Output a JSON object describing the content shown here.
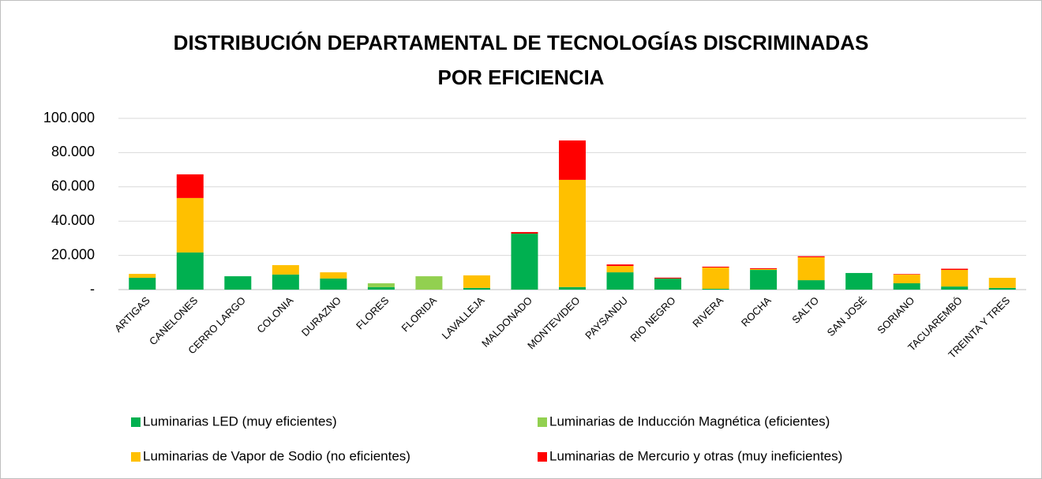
{
  "chart_data": {
    "type": "stacked_bar",
    "title": [
      "DISTRIBUCIÓN DEPARTAMENTAL DE TECNOLOGÍAS DISCRIMINADAS",
      "POR EFICIENCIA"
    ],
    "categories": [
      "ARTIGAS",
      "CANELONES",
      "CERRO LARGO",
      "COLONIA",
      "DURAZNO",
      "FLORES",
      "FLORIDA",
      "LAVALLEJA",
      "MALDONADO",
      "MONTEVIDEO",
      "PAYSANDU",
      "RIO NEGRO",
      "RIVERA",
      "ROCHA",
      "SALTO",
      "SAN JOSÉ",
      "SORIANO",
      "TACUAREMBÓ",
      "TREINTA Y TRES"
    ],
    "series": [
      {
        "name": "Luminarias  LED (muy eficientes)",
        "color": "#00b050",
        "values": [
          6900,
          21700,
          7800,
          8800,
          6500,
          1400,
          0,
          1000,
          32700,
          1500,
          10100,
          6500,
          500,
          11500,
          5500,
          9700,
          3700,
          1800,
          1000
        ]
      },
      {
        "name": "Luminarias de Inducción Magnética (eficientes)",
        "color": "#92d050",
        "values": [
          0,
          0,
          0,
          0,
          0,
          2300,
          7800,
          0,
          0,
          0,
          0,
          0,
          0,
          0,
          0,
          0,
          0,
          0,
          0
        ]
      },
      {
        "name": "Luminarias de Vapor de Sodio (no eficientes)",
        "color": "#ffc000",
        "values": [
          2300,
          31800,
          0,
          5500,
          3600,
          0,
          0,
          7300,
          0,
          62600,
          3700,
          0,
          12400,
          500,
          13400,
          0,
          5100,
          9700,
          5900
        ]
      },
      {
        "name": "Luminarias de Mercurio y otras (muy ineficientes)",
        "color": "#ff0000",
        "values": [
          0,
          13800,
          0,
          0,
          0,
          0,
          0,
          0,
          900,
          23000,
          900,
          500,
          500,
          500,
          600,
          0,
          300,
          700,
          0
        ]
      }
    ],
    "ylim": [
      0,
      100000
    ],
    "yticks": [
      {
        "value": 0,
        "label": "-"
      },
      {
        "value": 20000,
        "label": "20.000"
      },
      {
        "value": 40000,
        "label": "40.000"
      },
      {
        "value": 60000,
        "label": "60.000"
      },
      {
        "value": 80000,
        "label": "80.000"
      },
      {
        "value": 100000,
        "label": "100.000"
      }
    ],
    "grid": true
  }
}
